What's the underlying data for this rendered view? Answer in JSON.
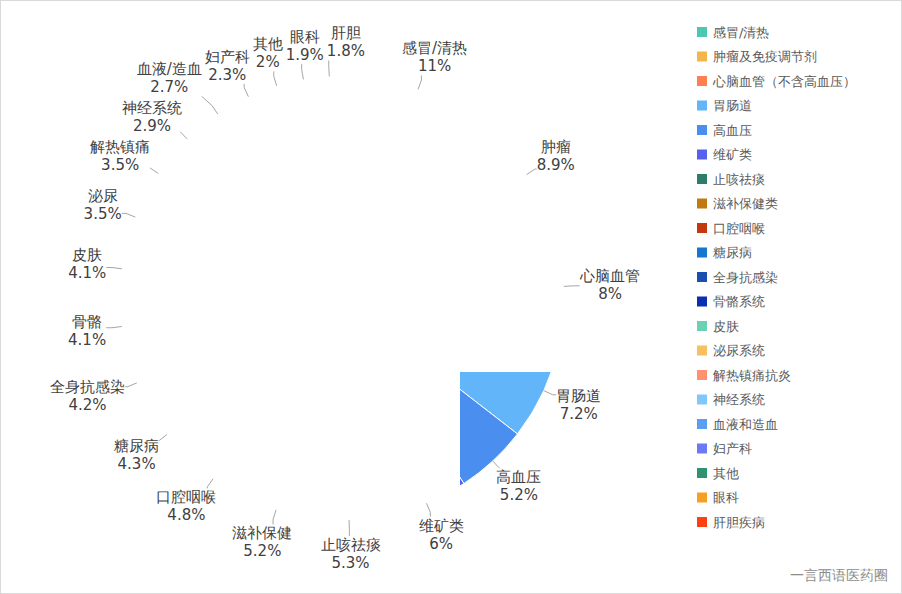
{
  "chart_data": {
    "type": "pie",
    "categories": [
      "感冒/清热",
      "肿瘤及免疫调节剂",
      "心脑血管（不含高血压）",
      "胃肠道",
      "高血压",
      "维矿类",
      "止咳祛痰",
      "滋补保健类",
      "口腔咽喉",
      "糖尿病",
      "全身抗感染",
      "骨骼系统",
      "皮肤",
      "泌尿系统",
      "解热镇痛抗炎",
      "神经系统",
      "血液和造血",
      "妇产科",
      "其他",
      "眼科",
      "肝胆疾病"
    ],
    "labels": [
      "感冒/清热",
      "肿瘤",
      "心脑血管",
      "胃肠道",
      "高血压",
      "维矿类",
      "止咳祛痰",
      "滋补保健",
      "口腔咽喉",
      "糖尿病",
      "全身抗感染",
      "骨骼",
      "皮肤",
      "泌尿",
      "解热镇痛",
      "神经系统",
      "血液/造血",
      "妇产科",
      "其他",
      "眼科",
      "肝胆"
    ],
    "values": [
      11,
      8.9,
      8,
      7.2,
      5.2,
      6,
      5.3,
      5.2,
      4.8,
      4.3,
      4.2,
      4.1,
      4.1,
      3.5,
      3.5,
      2.9,
      2.7,
      2.3,
      2,
      1.9,
      1.8
    ],
    "value_labels": [
      "11%",
      "8.9%",
      "8%",
      "7.2%",
      "5.2%",
      "6%",
      "5.3%",
      "5.2%",
      "4.8%",
      "4.3%",
      "4.2%",
      "4.1%",
      "4.1%",
      "3.5%",
      "3.5%",
      "2.9%",
      "2.7%",
      "2.3%",
      "2%",
      "1.9%",
      "1.8%"
    ],
    "colors": [
      "#4BC8B0",
      "#F5B54A",
      "#FF7F50",
      "#62B5F9",
      "#4A8FF0",
      "#5560F0",
      "#2E7D6B",
      "#C07A10",
      "#C33A10",
      "#1577D0",
      "#1A4EB0",
      "#0A2FB0",
      "#6BD1B5",
      "#F8C060",
      "#FF9070",
      "#80C8FA",
      "#5A9EF0",
      "#6A7AF5",
      "#2E9470",
      "#F5A020",
      "#FF4010"
    ],
    "data_labels": true,
    "legend": "right",
    "annotations": [
      "一言西语医药圈"
    ]
  }
}
